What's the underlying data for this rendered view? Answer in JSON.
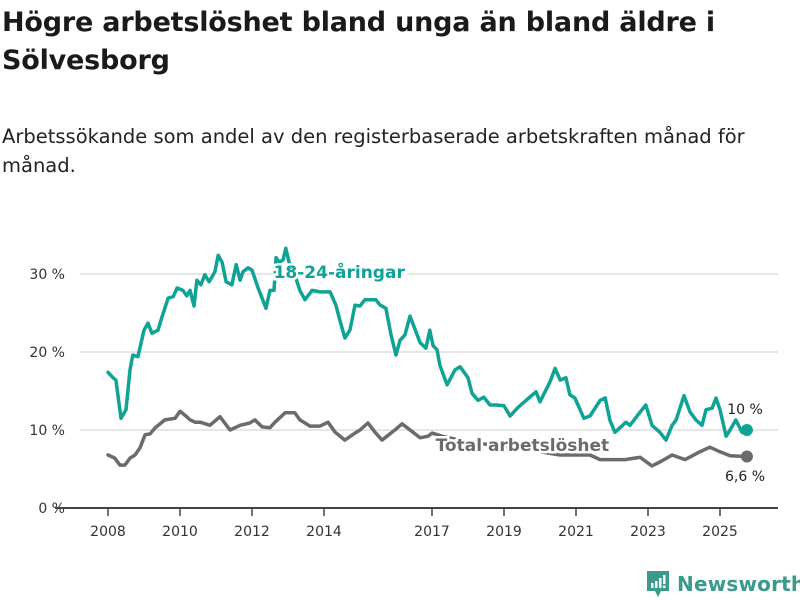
{
  "header": {
    "title": "Högre arbetslöshet bland unga än bland äldre i Sölvesborg",
    "subtitle": "Arbetssökande som andel av den registerbaserade arbetskraften månad för månad."
  },
  "branding": {
    "name": "Newsworthy"
  },
  "chart_data": {
    "type": "line",
    "title": "Högre arbetslöshet bland unga än bland äldre i Sölvesborg",
    "xlabel": "",
    "ylabel": "",
    "xlim": [
      2006.5,
      2026.6
    ],
    "ylim": [
      0,
      33
    ],
    "x_ticks": [
      {
        "value": 2008,
        "label": "2008"
      },
      {
        "value": 2010,
        "label": "2010"
      },
      {
        "value": 2012,
        "label": "2012"
      },
      {
        "value": 2014,
        "label": "2014"
      },
      {
        "value": 2017,
        "label": "2017"
      },
      {
        "value": 2019,
        "label": "2019"
      },
      {
        "value": 2021,
        "label": "2021"
      },
      {
        "value": 2023,
        "label": "2023"
      },
      {
        "value": 2025,
        "label": "2025"
      }
    ],
    "y_ticks": [
      {
        "value": 0,
        "label": "0 %"
      },
      {
        "value": 10,
        "label": "10 %"
      },
      {
        "value": 20,
        "label": "20 %"
      },
      {
        "value": 30,
        "label": "30 %"
      }
    ],
    "grid": true,
    "colors": {
      "young": "#0fa396",
      "total": "#6b6b6e",
      "grid": "#dddddd",
      "axis": "#444444"
    },
    "series": [
      {
        "name": "18-24-åringar",
        "key": "young",
        "end_label": "10 %",
        "label_at": [
          2012.6,
          29.5
        ],
        "x": [
          2008.0,
          2008.14,
          2008.22,
          2008.36,
          2008.5,
          2008.61,
          2008.69,
          2008.83,
          2009.0,
          2009.11,
          2009.22,
          2009.39,
          2009.5,
          2009.67,
          2009.81,
          2009.92,
          2010.08,
          2010.19,
          2010.28,
          2010.39,
          2010.47,
          2010.58,
          2010.69,
          2010.81,
          2010.97,
          2011.06,
          2011.17,
          2011.28,
          2011.44,
          2011.56,
          2011.67,
          2011.75,
          2011.89,
          2012.0,
          2012.17,
          2012.28,
          2012.39,
          2012.5,
          2012.61,
          2012.67,
          2012.75,
          2012.86,
          2012.94,
          2013.03,
          2013.19,
          2013.33,
          2013.47,
          2013.67,
          2013.89,
          2014.17,
          2014.33,
          2014.44,
          2014.58,
          2014.72,
          2014.86,
          2015.0,
          2015.14,
          2015.28,
          2015.44,
          2015.56,
          2015.72,
          2015.86,
          2016.0,
          2016.11,
          2016.25,
          2016.39,
          2016.67,
          2016.83,
          2016.94,
          2017.03,
          2017.14,
          2017.22,
          2017.42,
          2017.64,
          2017.78,
          2018.0,
          2018.11,
          2018.28,
          2018.44,
          2018.61,
          2018.78,
          2019.0,
          2019.17,
          2019.39,
          2019.61,
          2019.89,
          2020.0,
          2020.28,
          2020.42,
          2020.56,
          2020.72,
          2020.83,
          2020.97,
          2021.22,
          2021.39,
          2021.67,
          2021.81,
          2021.94,
          2022.08,
          2022.39,
          2022.5,
          2022.78,
          2022.94,
          2023.11,
          2023.33,
          2023.5,
          2023.67,
          2023.78,
          2024.0,
          2024.17,
          2024.33,
          2024.5,
          2024.61,
          2024.78,
          2024.89,
          2025.0,
          2025.17,
          2025.28,
          2025.44,
          2025.61,
          2025.72
        ],
        "y": [
          17.4,
          16.7,
          16.4,
          11.5,
          12.6,
          17.7,
          19.6,
          19.4,
          22.8,
          23.7,
          22.4,
          22.8,
          24.5,
          26.9,
          27.1,
          28.2,
          27.9,
          27.2,
          27.9,
          25.9,
          29.2,
          28.6,
          29.9,
          29.0,
          30.3,
          32.4,
          31.5,
          29.0,
          28.6,
          31.2,
          29.2,
          30.3,
          30.8,
          30.5,
          28.2,
          26.9,
          25.6,
          27.9,
          27.9,
          32.1,
          31.5,
          31.8,
          33.3,
          31.5,
          29.9,
          27.9,
          26.7,
          27.9,
          27.7,
          27.7,
          26.0,
          24.1,
          21.8,
          22.8,
          26.0,
          25.9,
          26.7,
          26.7,
          26.7,
          26.0,
          25.6,
          22.2,
          19.6,
          21.5,
          22.2,
          24.6,
          21.2,
          20.5,
          22.8,
          20.8,
          20.3,
          18.3,
          15.8,
          17.7,
          18.1,
          16.7,
          14.7,
          13.8,
          14.2,
          13.2,
          13.2,
          13.1,
          11.8,
          12.9,
          13.8,
          14.9,
          13.6,
          16.2,
          17.9,
          16.4,
          16.7,
          14.5,
          14.1,
          11.5,
          11.8,
          13.8,
          14.1,
          11.3,
          9.7,
          11.0,
          10.6,
          12.3,
          13.2,
          10.6,
          9.7,
          8.7,
          10.6,
          11.3,
          14.4,
          12.3,
          11.3,
          10.6,
          12.6,
          12.8,
          14.1,
          12.6,
          9.2,
          10.0,
          11.3,
          9.7,
          10.0
        ]
      },
      {
        "name": "Total arbetslöshet",
        "key": "total",
        "end_label": "6,6 %",
        "label_at": [
          2017.1,
          7.3
        ],
        "x": [
          2008.0,
          2008.19,
          2008.33,
          2008.47,
          2008.61,
          2008.75,
          2008.89,
          2009.03,
          2009.17,
          2009.31,
          2009.58,
          2009.86,
          2010.0,
          2010.14,
          2010.28,
          2010.42,
          2010.56,
          2010.83,
          2011.11,
          2011.39,
          2011.67,
          2011.94,
          2012.08,
          2012.28,
          2012.5,
          2012.64,
          2012.92,
          2013.19,
          2013.33,
          2013.61,
          2013.89,
          2014.11,
          2014.31,
          2014.58,
          2014.86,
          2015.0,
          2015.22,
          2015.42,
          2015.61,
          2015.83,
          2015.97,
          2016.17,
          2016.39,
          2016.67,
          2016.89,
          2017.0,
          2017.36,
          2017.78,
          2018.33,
          2018.89,
          2019.44,
          2020.0,
          2020.56,
          2021.11,
          2021.39,
          2021.67,
          2021.94,
          2022.36,
          2022.78,
          2023.11,
          2023.33,
          2023.67,
          2024.03,
          2024.44,
          2024.72,
          2025.0,
          2025.28,
          2025.72
        ],
        "y": [
          6.8,
          6.4,
          5.5,
          5.5,
          6.4,
          6.8,
          7.7,
          9.4,
          9.5,
          10.3,
          11.3,
          11.5,
          12.4,
          11.9,
          11.3,
          11.0,
          11.0,
          10.6,
          11.7,
          10.0,
          10.6,
          10.9,
          11.3,
          10.4,
          10.3,
          11.0,
          12.2,
          12.2,
          11.3,
          10.5,
          10.5,
          11.0,
          9.7,
          8.7,
          9.6,
          10.0,
          10.9,
          9.7,
          8.7,
          9.5,
          10.0,
          10.8,
          10.0,
          9.0,
          9.2,
          9.6,
          9.1,
          8.7,
          8.3,
          7.9,
          7.7,
          7.2,
          6.8,
          6.8,
          6.8,
          6.2,
          6.2,
          6.2,
          6.5,
          5.4,
          5.9,
          6.8,
          6.2,
          7.2,
          7.8,
          7.2,
          6.7,
          6.6
        ]
      }
    ]
  }
}
